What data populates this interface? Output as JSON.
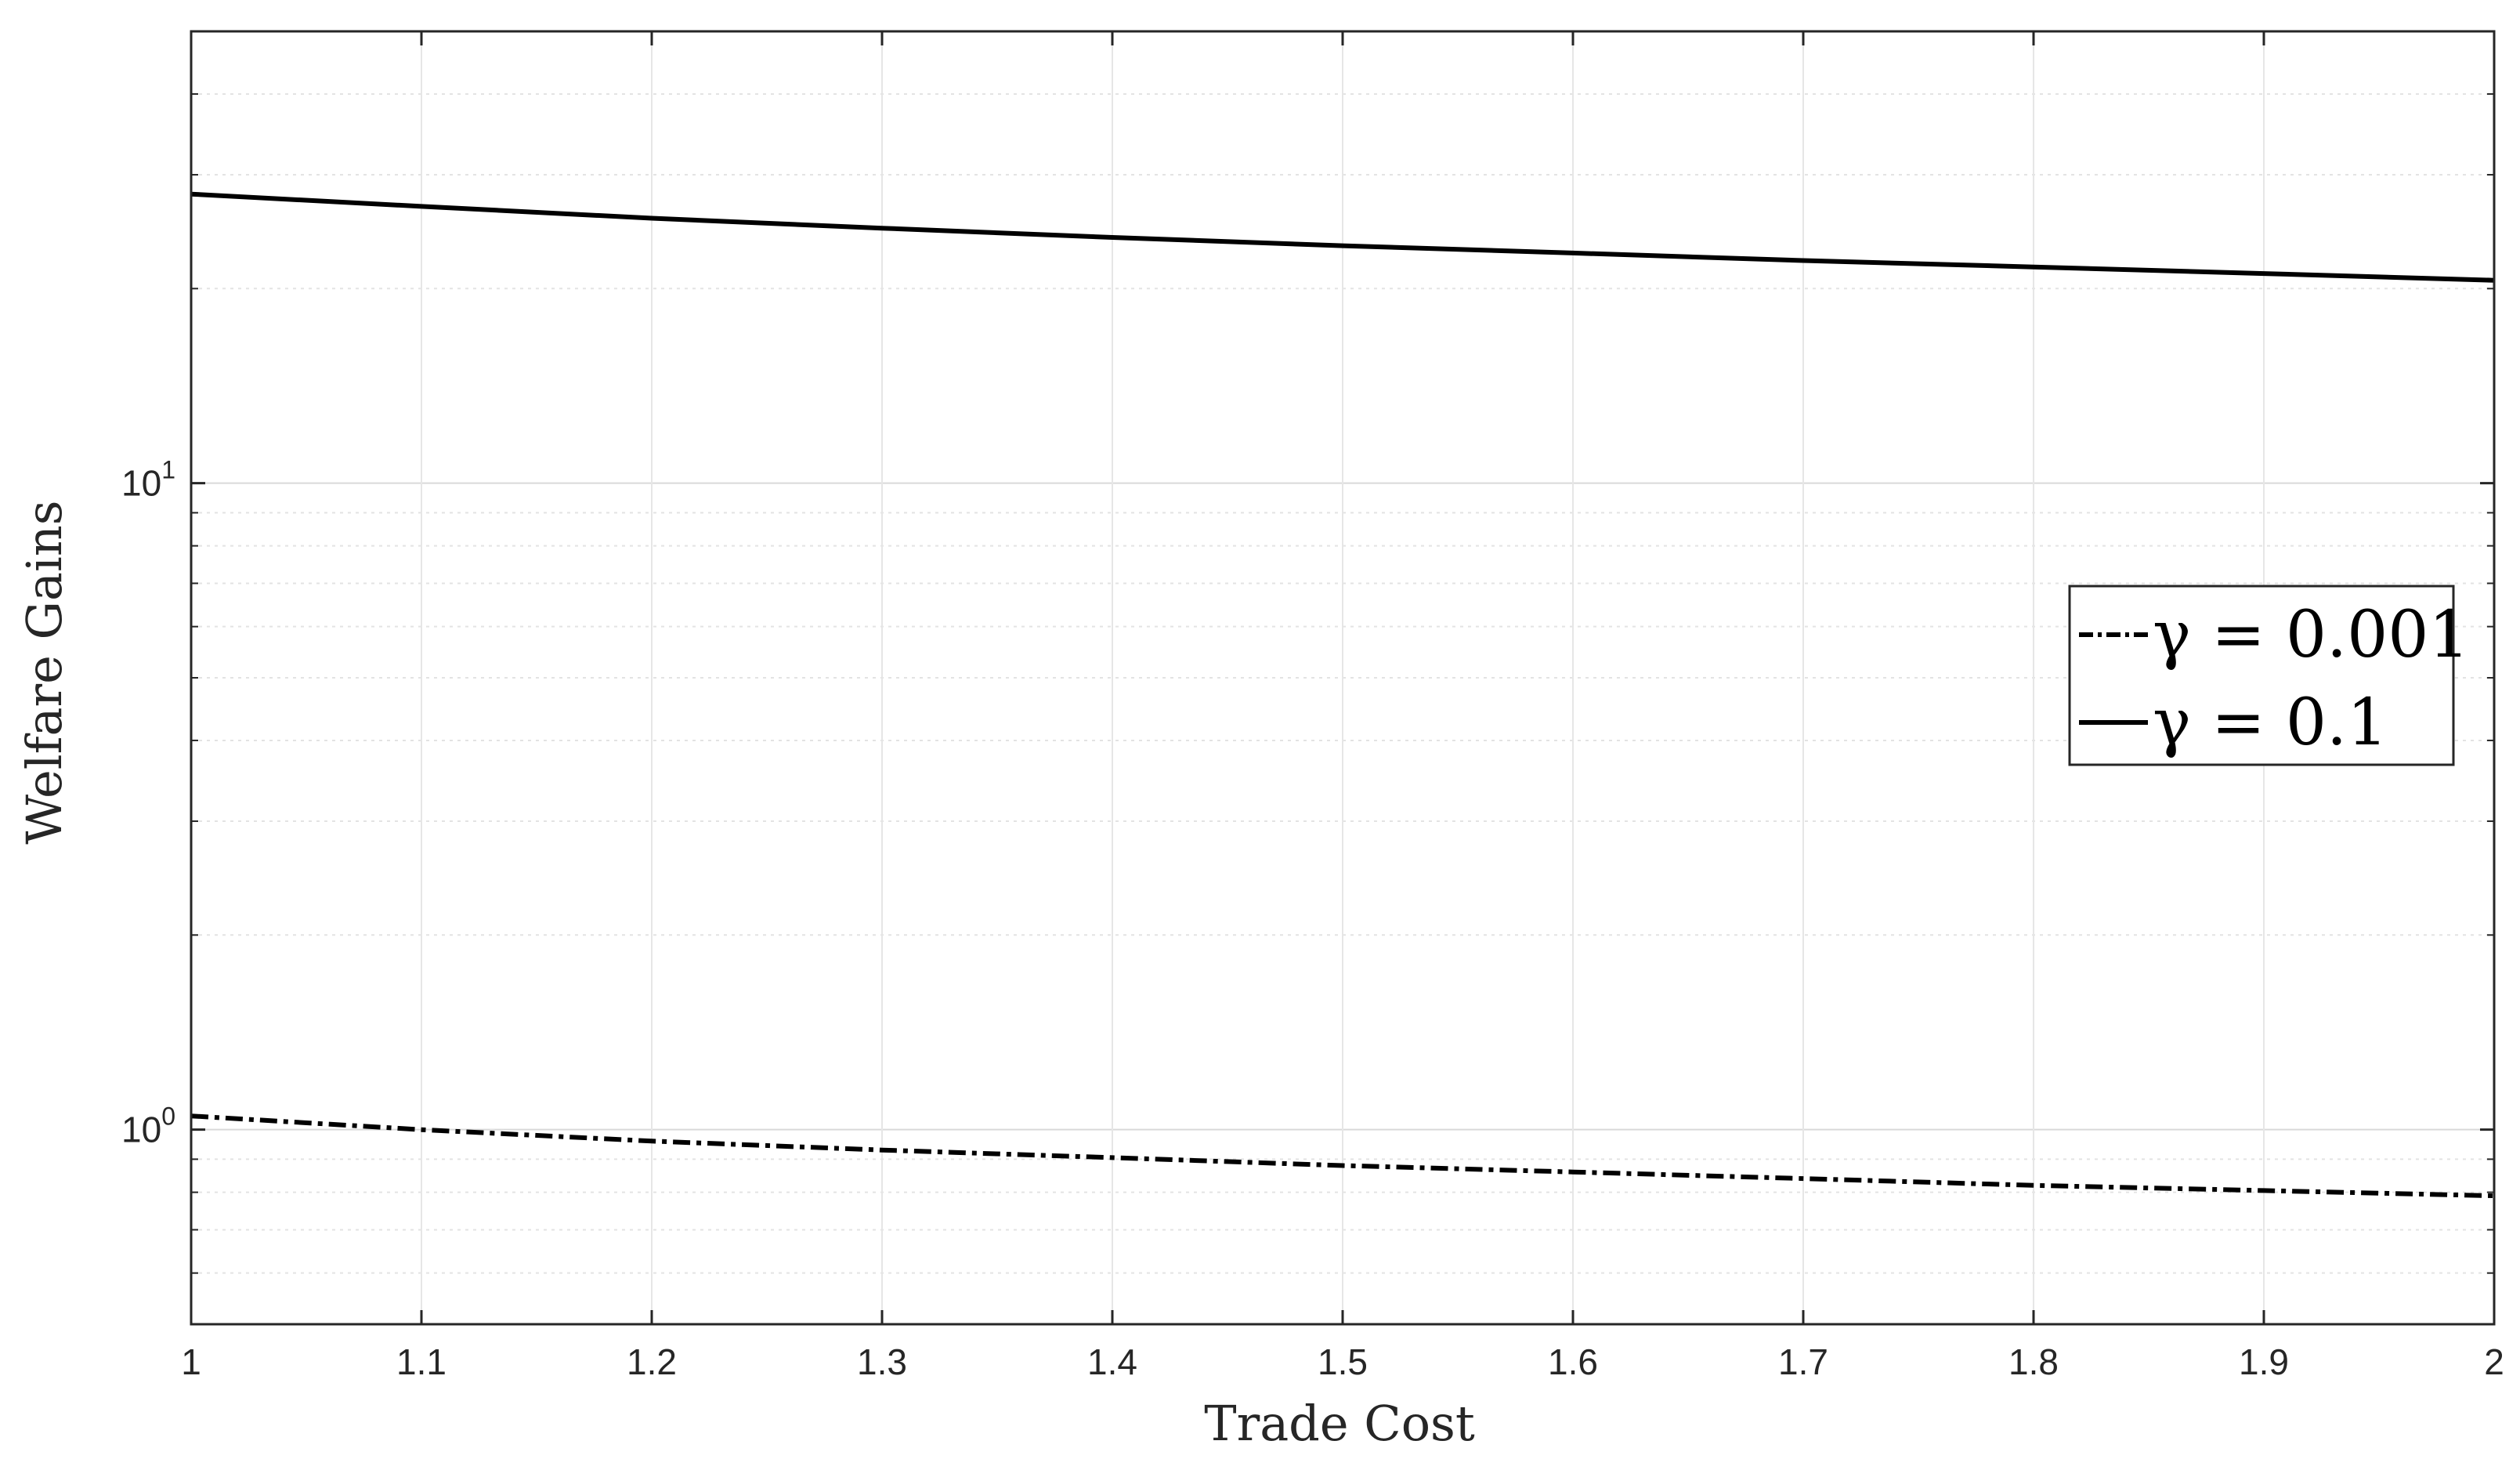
{
  "chart_data": {
    "type": "line",
    "xlabel": "Trade Cost",
    "ylabel": "Welfare Gains",
    "xlim": [
      1,
      2
    ],
    "ylim": [
      0.5,
      50
    ],
    "yscale": "log",
    "grid": true,
    "minor_grid": true,
    "legend_position": "right",
    "x_ticks": [
      "1",
      "1.1",
      "1.2",
      "1.3",
      "1.4",
      "1.5",
      "1.6",
      "1.7",
      "1.8",
      "1.9",
      "2"
    ],
    "y_ticks": [
      {
        "value": 1,
        "base": "10",
        "exp": "0"
      },
      {
        "value": 10,
        "base": "10",
        "exp": "1"
      }
    ],
    "x": [
      1.0,
      1.1,
      1.2,
      1.3,
      1.4,
      1.5,
      1.6,
      1.7,
      1.8,
      1.9,
      2.0
    ],
    "series": [
      {
        "name": "γ = 0.001",
        "style": "dashdot",
        "color": "#000000",
        "values": [
          1.05,
          1.0,
          0.96,
          0.93,
          0.905,
          0.88,
          0.86,
          0.84,
          0.82,
          0.805,
          0.79
        ]
      },
      {
        "name": "γ = 0.1",
        "style": "solid",
        "color": "#000000",
        "values": [
          28.0,
          26.8,
          25.7,
          24.8,
          24.0,
          23.3,
          22.7,
          22.1,
          21.6,
          21.1,
          20.6
        ]
      }
    ]
  }
}
